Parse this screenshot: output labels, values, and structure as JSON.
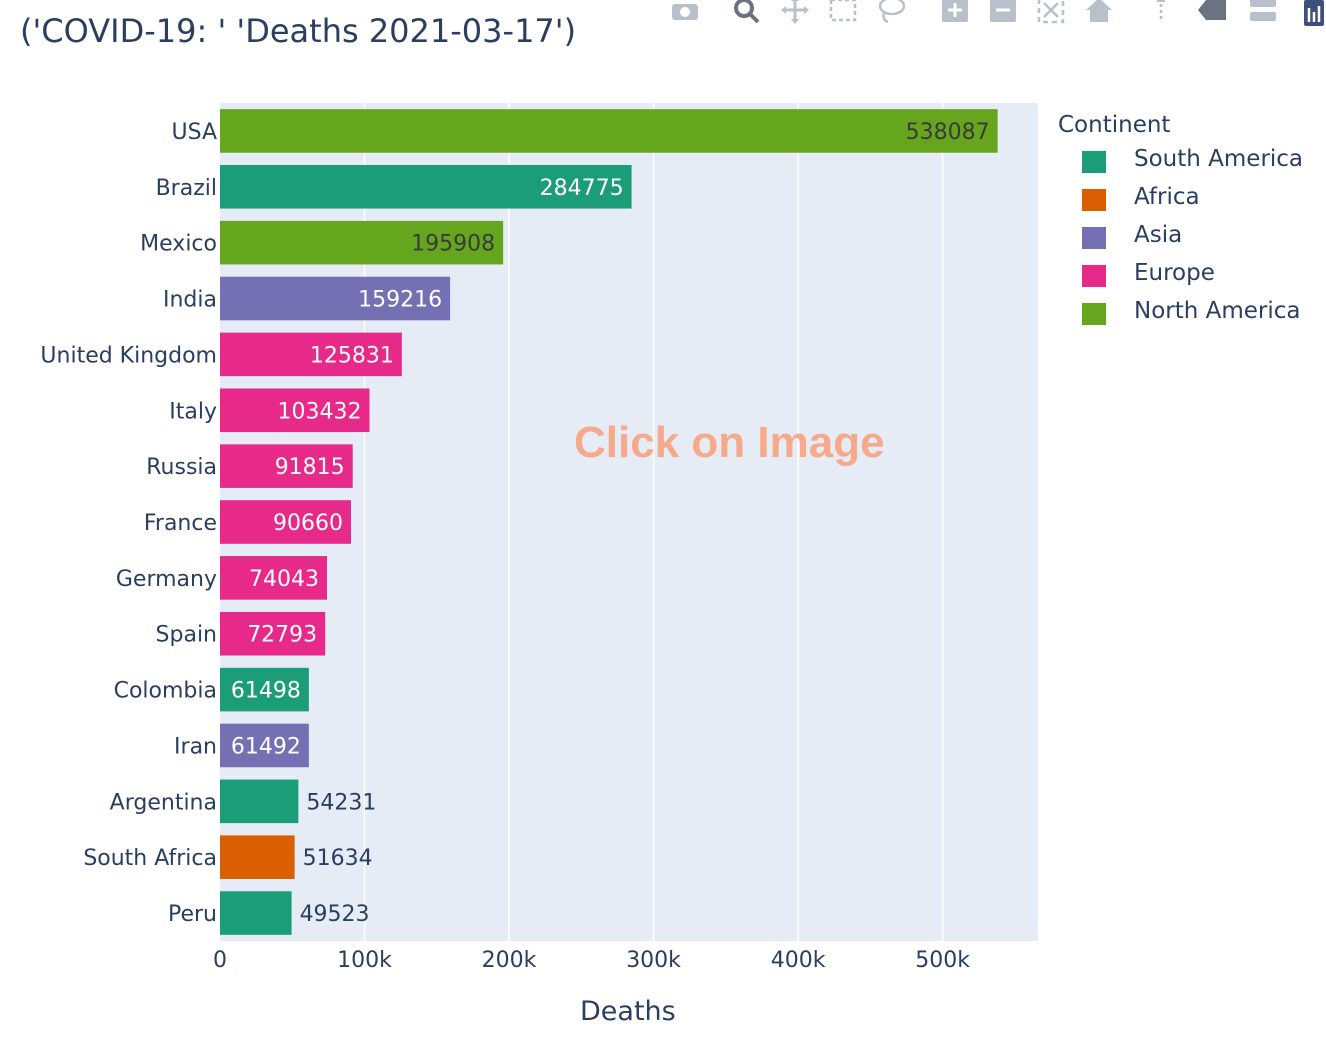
{
  "title": "('COVID-19: ' 'Deaths 2021-03-17')",
  "overlay_text": "Click on Image",
  "modebar": {
    "colors": {
      "icon": "#b8c0cc",
      "icon_dark": "#6b7380"
    },
    "icons": [
      "camera-icon",
      "zoom-icon",
      "pan-icon",
      "box-select-icon",
      "lasso-icon",
      "zoom-in-icon",
      "zoom-out-icon",
      "autoscale-icon",
      "home-icon",
      "spike-lines-icon",
      "hover-closest-icon",
      "hover-compare-icon",
      "plotly-logo-icon"
    ]
  },
  "colors": {
    "plot_bg": "#e5ecf6",
    "grid": "#ffffff",
    "South America": "#1b9e77",
    "Africa": "#d95f02",
    "Asia": "#7570b3",
    "Europe": "#e7298a",
    "North America": "#66a61e"
  },
  "legend": {
    "title": "Continent",
    "position": "right",
    "items": [
      "South America",
      "Africa",
      "Asia",
      "Europe",
      "North America"
    ]
  },
  "chart_data": {
    "type": "bar",
    "orientation": "horizontal",
    "title": "('COVID-19: ' 'Deaths 2021-03-17')",
    "xlabel": "Deaths",
    "ylabel": "",
    "xlim": [
      0,
      566000
    ],
    "xticks": [
      0,
      100000,
      200000,
      300000,
      400000,
      500000
    ],
    "xtick_labels": [
      "0",
      "100k",
      "200k",
      "300k",
      "400k",
      "500k"
    ],
    "grid": true,
    "categories": [
      "USA",
      "Brazil",
      "Mexico",
      "India",
      "United Kingdom",
      "Italy",
      "Russia",
      "France",
      "Germany",
      "Spain",
      "Colombia",
      "Iran",
      "Argentina",
      "South Africa",
      "Peru"
    ],
    "values": [
      538087,
      284775,
      195908,
      159216,
      125831,
      103432,
      91815,
      90660,
      74043,
      72793,
      61498,
      61492,
      54231,
      51634,
      49523
    ],
    "continents": [
      "North America",
      "South America",
      "North America",
      "Asia",
      "Europe",
      "Europe",
      "Europe",
      "Europe",
      "Europe",
      "Europe",
      "South America",
      "Asia",
      "South America",
      "Africa",
      "South America"
    ]
  }
}
